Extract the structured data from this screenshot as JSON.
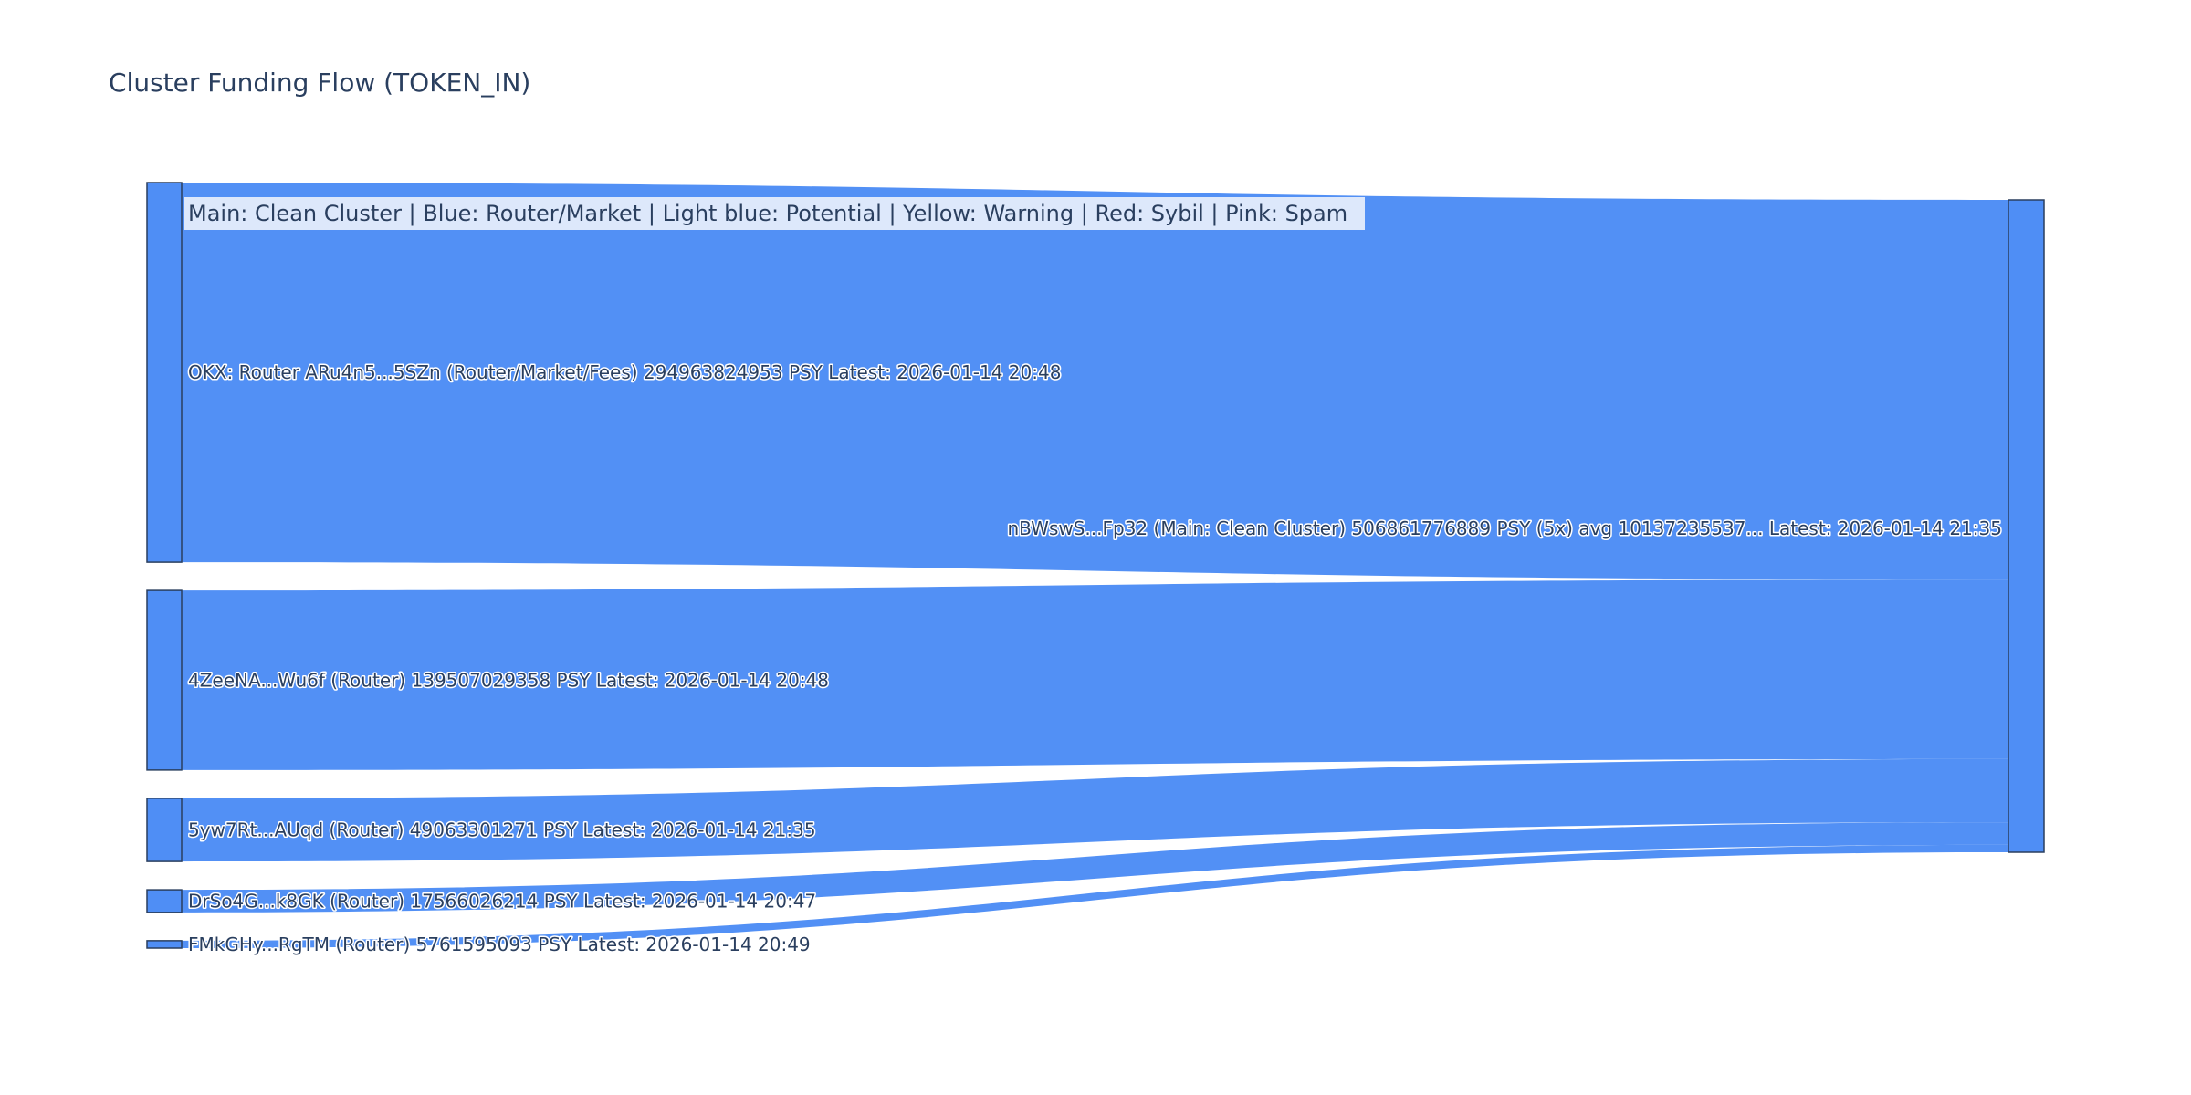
{
  "chart_data": {
    "type": "sankey",
    "title": "Cluster Funding Flow (TOKEN_IN)",
    "annotation": "Main: Clean Cluster  |  Blue: Router/Market | Light blue: Potential | Yellow: Warning | Red: Sybil | Pink: Spam",
    "colors": {
      "node": "#4f8ef5",
      "link": "#4f8ef5",
      "node_border": "#2a3f5f",
      "annotation_bg": "#dde8fb",
      "text": "#2a3f5f"
    },
    "sources": [
      {
        "label": "OKX: Router ARu4n5...5SZn (Router/Market/Fees) 294963824953 PSY Latest: 2026-01-14 20:48",
        "value": 294963824953
      },
      {
        "label": "4ZeeNA...Wu6f (Router) 139507029358 PSY Latest: 2026-01-14 20:48",
        "value": 139507029358
      },
      {
        "label": "5yw7Rt...AUqd (Router) 49063301271 PSY Latest: 2026-01-14 21:35",
        "value": 49063301271
      },
      {
        "label": "DrSo4G...k8GK (Router) 17566026214 PSY Latest: 2026-01-14 20:47",
        "value": 17566026214
      },
      {
        "label": "FMkGHy...RgTM (Router) 5761595093 PSY Latest: 2026-01-14 20:49",
        "value": 5761595093
      }
    ],
    "target": {
      "label": "nBWswS...Fp32 (Main: Clean Cluster) 506861776889 PSY (5x) avg 10137235537... Latest: 2026-01-14 21:35",
      "value": 506861776889
    }
  }
}
